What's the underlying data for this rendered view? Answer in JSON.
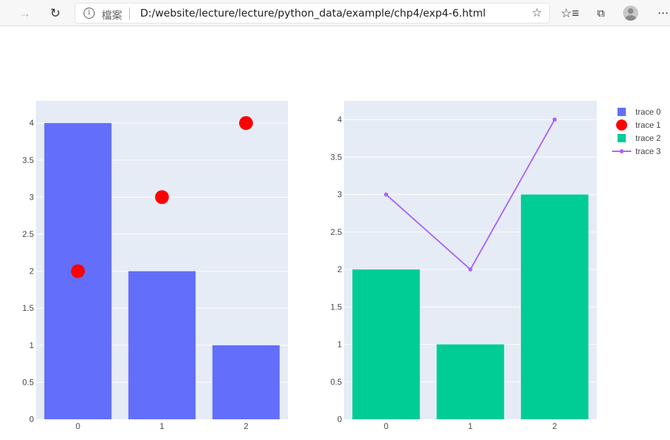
{
  "browser": {
    "address_label": "檔案",
    "url": "D:/website/lecture/lecture/python_data/example/chp4/exp4-6.html",
    "icons": [
      "forward-icon",
      "refresh-icon",
      "info-icon",
      "favorite-star-icon",
      "favorites-icon",
      "collections-icon",
      "profile-icon",
      "more-icon"
    ]
  },
  "chart_data": [
    {
      "type": "bar",
      "categories": [
        "0",
        "1",
        "2"
      ],
      "ylim": [
        0,
        4.3
      ],
      "yticks": [
        "0",
        "0.5",
        "1",
        "1.5",
        "2",
        "2.5",
        "3",
        "3.5",
        "4"
      ],
      "series": [
        {
          "name": "trace 0",
          "type": "bar",
          "color": "#636efa",
          "values": [
            4,
            2,
            1
          ]
        },
        {
          "name": "trace 1",
          "type": "scatter",
          "mode": "markers",
          "color": "#ff0000",
          "values": [
            2,
            3,
            4
          ]
        }
      ]
    },
    {
      "type": "bar",
      "categories": [
        "0",
        "1",
        "2"
      ],
      "ylim": [
        0,
        4.25
      ],
      "yticks": [
        "0",
        "0.5",
        "1",
        "1.5",
        "2",
        "2.5",
        "3",
        "3.5",
        "4"
      ],
      "series": [
        {
          "name": "trace 2",
          "type": "bar",
          "color": "#00cc96",
          "values": [
            2,
            1,
            3
          ]
        },
        {
          "name": "trace 3",
          "type": "scatter",
          "mode": "lines+markers",
          "color": "#ab63fa",
          "values": [
            3,
            2,
            4
          ]
        }
      ]
    }
  ],
  "legend": {
    "placement": "top-right",
    "items": [
      {
        "label": "trace 0",
        "symbol": "square",
        "color": "#636efa"
      },
      {
        "label": "trace 1",
        "symbol": "circle",
        "color": "#ff0000"
      },
      {
        "label": "trace 2",
        "symbol": "square",
        "color": "#00cc96"
      },
      {
        "label": "trace 3",
        "symbol": "line-dot",
        "color": "#ab63fa"
      }
    ]
  },
  "colors": {
    "plot_bg": "#e5ecf6",
    "grid": "#ffffff"
  }
}
